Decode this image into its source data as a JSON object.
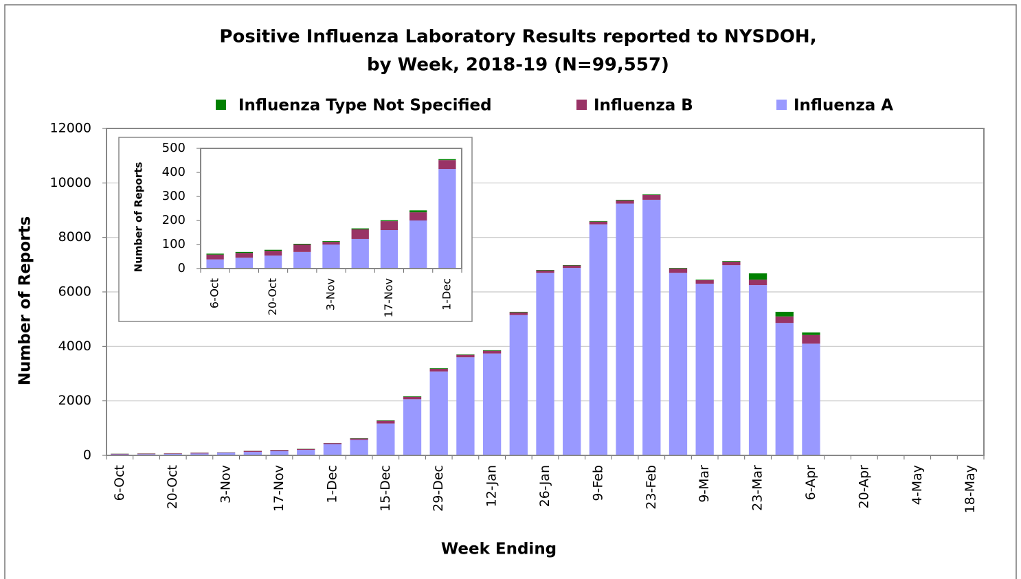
{
  "chart_data": [
    {
      "type": "bar",
      "stacked": true,
      "title": [
        "Positive Influenza Laboratory Results reported to NYSDOH,",
        "by Week, 2018-19 (N=99,557)"
      ],
      "xlabel": "Week Ending",
      "ylabel": "Number of Reports",
      "categories": [
        "6-Oct",
        null,
        "20-Oct",
        null,
        "3-Nov",
        null,
        "17-Nov",
        null,
        "1-Dec",
        null,
        "15-Dec",
        null,
        "29-Dec",
        null,
        "12-Jan",
        null,
        "26-Jan",
        null,
        "9-Feb",
        null,
        "23-Feb",
        null,
        "9-Mar",
        null,
        "23-Mar",
        null,
        "6-Apr",
        null,
        "20-Apr",
        null,
        "4-May",
        null,
        "18-May"
      ],
      "series": [
        {
          "name": "Influenza Type Not Specified",
          "color": "#008000",
          "values": [
            4,
            4,
            4,
            3,
            3,
            4,
            4,
            8,
            4,
            10,
            15,
            20,
            20,
            15,
            20,
            20,
            17,
            13,
            20,
            20,
            20,
            20,
            20,
            20,
            230,
            170,
            90,
            0,
            0,
            0,
            0,
            0,
            0
          ]
        },
        {
          "name": "Influenza B",
          "color": "#993366",
          "values": [
            20,
            20,
            20,
            31,
            11,
            40,
            37,
            34,
            37,
            50,
            100,
            90,
            100,
            90,
            100,
            100,
            90,
            90,
            100,
            120,
            180,
            160,
            130,
            130,
            200,
            240,
            320,
            0,
            0,
            0,
            0,
            0,
            0
          ]
        },
        {
          "name": "Influenza A",
          "color": "#9999ff",
          "values": [
            38,
            45,
            54,
            69,
            100,
            123,
            160,
            200,
            414,
            570,
            1170,
            2060,
            3080,
            3600,
            3740,
            5150,
            6700,
            6880,
            8480,
            9240,
            9380,
            6700,
            6300,
            6980,
            6250,
            4860,
            4100,
            0,
            0,
            0,
            0,
            0,
            0
          ]
        }
      ],
      "ylim": [
        0,
        12000
      ],
      "yticks": [
        0,
        2000,
        4000,
        6000,
        8000,
        10000,
        12000
      ],
      "grid": true,
      "legend": "top"
    },
    {
      "type": "bar",
      "stacked": true,
      "ylabel": "Number of Reports",
      "categories": [
        "6-Oct",
        null,
        "20-Oct",
        null,
        "3-Nov",
        null,
        "17-Nov",
        null,
        "1-Dec"
      ],
      "series": [
        {
          "name": "Influenza Type Not Specified",
          "color": "#008000",
          "values": [
            4,
            4,
            4,
            3,
            3,
            4,
            4,
            8,
            4
          ]
        },
        {
          "name": "Influenza B",
          "color": "#993366",
          "values": [
            20,
            20,
            20,
            31,
            11,
            40,
            37,
            34,
            37
          ]
        },
        {
          "name": "Influenza A",
          "color": "#9999ff",
          "values": [
            38,
            45,
            54,
            69,
            100,
            123,
            160,
            200,
            414
          ]
        }
      ],
      "ylim": [
        0,
        500
      ],
      "yticks": [
        0,
        100,
        200,
        300,
        400,
        500
      ],
      "grid": false
    }
  ]
}
